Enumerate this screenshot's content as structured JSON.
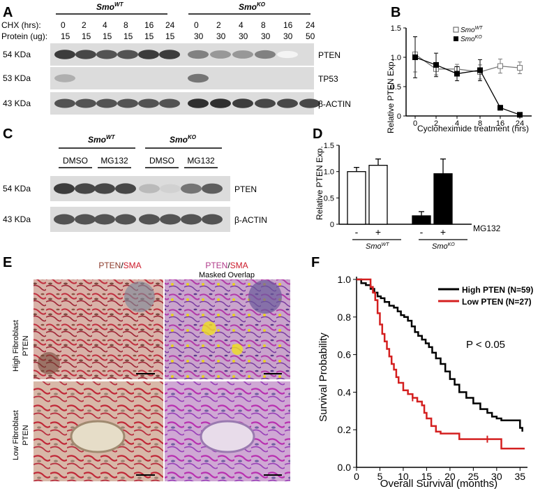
{
  "panels": {
    "A": {
      "letter": "A",
      "group_wt": "Smo",
      "group_wt_sup": "WT",
      "group_ko": "Smo",
      "group_ko_sup": "KO",
      "row_cht_label": "CHX (hrs):",
      "row_protein_label": "Protein (ug):",
      "chx_values": [
        "0",
        "2",
        "4",
        "8",
        "16",
        "24",
        "0",
        "2",
        "4",
        "8",
        "16",
        "24"
      ],
      "protein_values": [
        "15",
        "15",
        "15",
        "15",
        "15",
        "15",
        "30",
        "30",
        "30",
        "30",
        "30",
        "50"
      ],
      "blots": [
        {
          "kda": "54 KDa",
          "name": "PTEN"
        },
        {
          "kda": "53 KDa",
          "name": "TP53"
        },
        {
          "kda": "43 KDa",
          "name": "β-ACTIN"
        }
      ]
    },
    "B": {
      "letter": "B",
      "ylabel": "Relative PTEN Exp.",
      "xlabel": "Cycloheximide treatment (hrs)",
      "legend_wt": "Smo",
      "legend_wt_sup": "WT",
      "legend_ko": "Smo",
      "legend_ko_sup": "KO"
    },
    "C": {
      "letter": "C",
      "group_wt": "Smo",
      "group_wt_sup": "WT",
      "group_ko": "Smo",
      "group_ko_sup": "KO",
      "treatments": [
        "DMSO",
        "MG132",
        "DMSO",
        "MG132"
      ],
      "blots": [
        {
          "kda": "54 KDa",
          "name": "PTEN"
        },
        {
          "kda": "43 KDa",
          "name": "β-ACTIN"
        }
      ]
    },
    "D": {
      "letter": "D",
      "ylabel": "Relative PTEN Exp.",
      "treatment_label": "MG132",
      "signs": [
        "-",
        "+",
        "-",
        "+"
      ],
      "group_wt": "Smo",
      "group_wt_sup": "WT",
      "group_ko": "Smo",
      "group_ko_sup": "KO"
    },
    "E": {
      "letter": "E",
      "col1_title_a": "PTEN",
      "col1_title_sep": "/",
      "col1_title_b": "SMA",
      "col2_title_a": "PTEN",
      "col2_title_sep": "/",
      "col2_title_b": "SMA",
      "col2_subtitle": "Masked Overlap",
      "row1_label_line1": "High Fibroblast",
      "row1_label_line2": "PTEN",
      "row2_label_line1": "Low Fibroblast",
      "row2_label_line2": "PTEN"
    },
    "F": {
      "letter": "F",
      "ylabel": "Survival Probability",
      "xlabel": "Overall Survival (months)",
      "legend_high": "High PTEN (N=59)",
      "legend_low": "Low PTEN (N=27)",
      "pvalue": "P < 0.05"
    }
  },
  "colors": {
    "high_pten": "#000000",
    "low_pten": "#d42020",
    "sma_red": "#cc1a2a",
    "pten_brown": "#8b3a2a"
  },
  "chart_data": [
    {
      "panel": "B",
      "type": "line",
      "title": "",
      "xlabel": "Cycloheximide treatment (hrs)",
      "ylabel": "Relative PTEN Exp.",
      "x_categories": [
        "0",
        "2",
        "4",
        "8",
        "16",
        "24"
      ],
      "y_ticks": [
        "0",
        "0.5",
        "1.0",
        "1.5"
      ],
      "ylim": [
        0,
        1.5
      ],
      "legend": "top-right",
      "series": [
        {
          "name": "SmoWT",
          "marker": "open-square",
          "values": [
            1.05,
            0.8,
            0.8,
            0.75,
            0.85,
            0.82
          ],
          "errors": [
            0.3,
            0.1,
            0.08,
            0.12,
            0.12,
            0.1
          ]
        },
        {
          "name": "SmoKO",
          "marker": "filled-square",
          "values": [
            1.0,
            0.87,
            0.72,
            0.78,
            0.14,
            0.02
          ],
          "errors": [
            0.35,
            0.2,
            0.12,
            0.18,
            0.04,
            0.02
          ]
        }
      ]
    },
    {
      "panel": "D",
      "type": "bar",
      "title": "",
      "ylabel": "Relative PTEN Exp.",
      "y_ticks": [
        "0",
        "0.5",
        "1.0",
        "1.5"
      ],
      "ylim": [
        0,
        1.5
      ],
      "categories": [
        "-",
        "+",
        "-",
        "+"
      ],
      "groups": [
        "SmoWT",
        "SmoWT",
        "SmoKO",
        "SmoKO"
      ],
      "values": [
        1.0,
        1.12,
        0.16,
        0.96
      ],
      "errors": [
        0.08,
        0.12,
        0.08,
        0.28
      ],
      "fill": [
        "open",
        "open",
        "filled",
        "filled"
      ]
    },
    {
      "panel": "F",
      "type": "line",
      "title": "",
      "xlabel": "Overall Survival (months)",
      "ylabel": "Survival Probability",
      "x_ticks": [
        "0",
        "5",
        "10",
        "15",
        "20",
        "25",
        "30",
        "35"
      ],
      "y_ticks": [
        "0.0",
        "0.2",
        "0.4",
        "0.6",
        "0.8",
        "1.0"
      ],
      "xlim": [
        0,
        36
      ],
      "ylim": [
        0,
        1.0
      ],
      "legend": "top-right",
      "series": [
        {
          "name": "High PTEN (N=59)",
          "color": "#000000",
          "x": [
            0,
            1,
            2,
            3,
            3.8,
            4.5,
            5.2,
            6,
            7,
            8,
            8.8,
            9.5,
            10.2,
            11,
            11.8,
            12.5,
            13.2,
            14,
            14.8,
            15.5,
            16.2,
            17,
            18,
            19,
            20,
            21,
            22,
            23.5,
            25,
            26.5,
            28,
            29,
            30,
            31,
            32,
            34,
            35,
            35.5
          ],
          "y": [
            1.0,
            0.98,
            0.97,
            0.95,
            0.93,
            0.91,
            0.9,
            0.88,
            0.86,
            0.85,
            0.83,
            0.81,
            0.8,
            0.78,
            0.75,
            0.72,
            0.7,
            0.68,
            0.66,
            0.64,
            0.61,
            0.58,
            0.55,
            0.51,
            0.47,
            0.44,
            0.4,
            0.37,
            0.34,
            0.31,
            0.29,
            0.27,
            0.26,
            0.25,
            0.25,
            0.25,
            0.21,
            0.19
          ],
          "censor_x": [],
          "censor_y": []
        },
        {
          "name": "Low PTEN (N=27)",
          "color": "#d42020",
          "x": [
            0,
            2,
            3,
            3.5,
            4,
            4.5,
            5,
            5.5,
            6,
            6.5,
            7,
            7.5,
            8,
            8.5,
            9,
            10,
            11,
            12,
            13,
            14,
            14.5,
            15,
            16,
            17,
            18,
            20,
            22,
            24,
            26,
            28,
            30,
            31,
            36
          ],
          "y": [
            1.0,
            1.0,
            0.96,
            0.93,
            0.89,
            0.82,
            0.76,
            0.71,
            0.67,
            0.63,
            0.59,
            0.55,
            0.52,
            0.48,
            0.45,
            0.41,
            0.39,
            0.37,
            0.35,
            0.33,
            0.29,
            0.26,
            0.22,
            0.19,
            0.18,
            0.18,
            0.15,
            0.15,
            0.15,
            0.15,
            0.15,
            0.1,
            0.1
          ],
          "censor_x": [
            12,
            28
          ],
          "censor_y": [
            0.37,
            0.15
          ]
        }
      ]
    }
  ]
}
